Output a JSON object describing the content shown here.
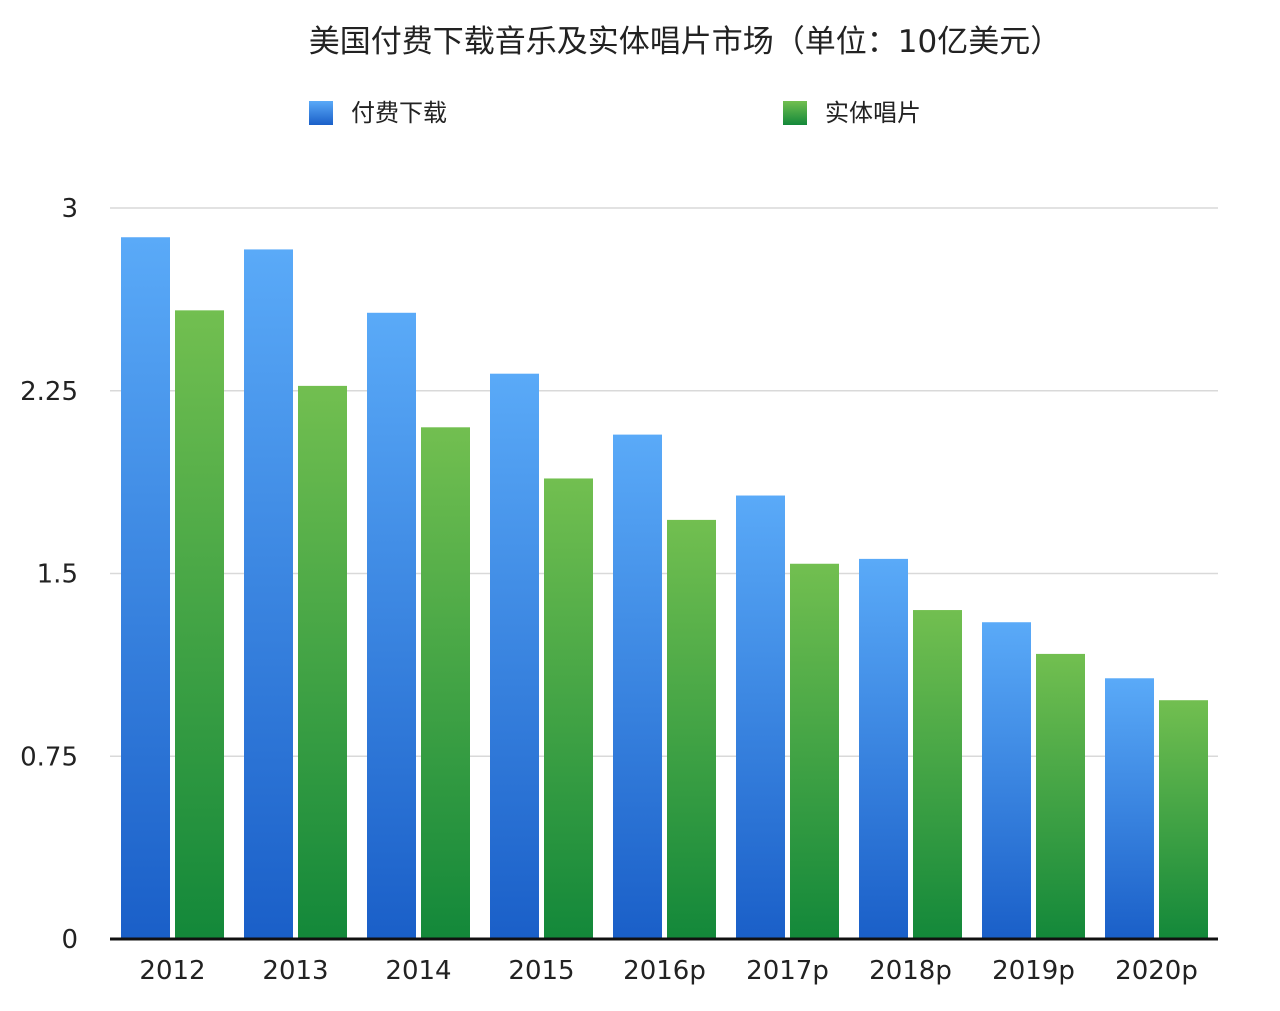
{
  "chart_data": {
    "type": "bar",
    "title": "美国付费下载音乐及实体唱片市场（单位：10亿美元）",
    "categories": [
      "2012",
      "2013",
      "2014",
      "2015",
      "2016p",
      "2017p",
      "2018p",
      "2019p",
      "2020p"
    ],
    "series": [
      {
        "name": "付费下载",
        "values": [
          2.88,
          2.83,
          2.57,
          2.32,
          2.07,
          1.82,
          1.56,
          1.3,
          1.07
        ],
        "color_top": "#5aaaf8",
        "color_bottom": "#1a5fc8"
      },
      {
        "name": "实体唱片",
        "values": [
          2.58,
          2.27,
          2.1,
          1.89,
          1.72,
          1.54,
          1.35,
          1.17,
          0.98
        ],
        "color_top": "#72bf50",
        "color_bottom": "#13883a"
      }
    ],
    "yticks": [
      "0",
      "0.75",
      "1.5",
      "2.25",
      "3"
    ],
    "ylim": [
      0,
      3
    ],
    "grid": true,
    "legend": "top"
  }
}
